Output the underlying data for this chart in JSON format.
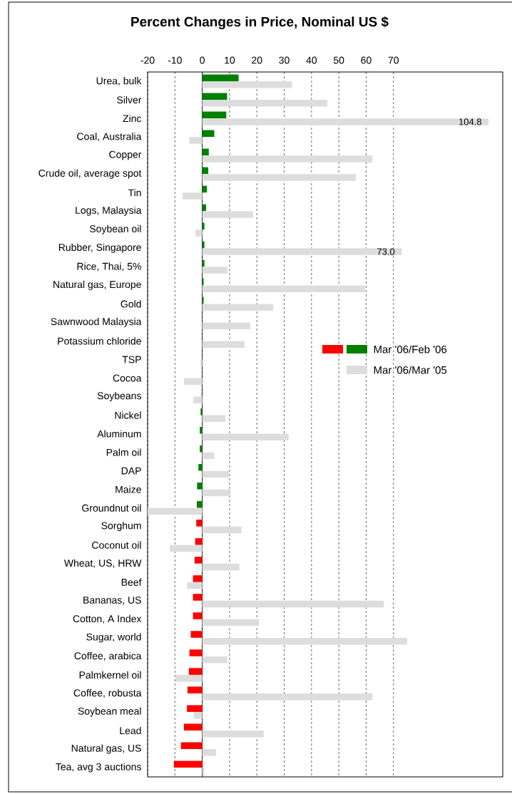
{
  "chart_data": {
    "type": "bar",
    "orientation": "horizontal",
    "title": "Percent Changes in Price, Nominal US $",
    "categories": [
      "Urea, bulk",
      "Silver",
      "Zinc",
      "Coal, Australia",
      "Copper",
      "Crude oil, average spot",
      "Tin",
      "Logs, Malaysia",
      "Soybean oil",
      "Rubber, Singapore",
      "Rice, Thai, 5%",
      "Natural gas, Europe",
      "Gold",
      "Sawnwood Malaysia",
      "Potassium chloride",
      "TSP",
      "Cocoa",
      "Soybeans",
      "Nickel",
      "Aluminum",
      "Palm oil",
      "DAP",
      "Maize",
      "Groundnut oil",
      "Sorghum",
      "Coconut oil",
      "Wheat, US, HRW",
      "Beef",
      "Bananas, US",
      "Cotton, A Index",
      "Sugar, world",
      "Coffee, arabica",
      "Palmkernel oil",
      "Coffee, robusta",
      "Soybean meal",
      "Lead",
      "Natural gas, US",
      "Tea, avg 3 auctions"
    ],
    "series": [
      {
        "name": "Mar '06/Feb '06",
        "values": [
          13.3,
          9.1,
          8.8,
          4.4,
          2.4,
          2.2,
          1.7,
          1.4,
          0.8,
          0.8,
          0.8,
          0.5,
          0.5,
          0,
          0,
          0,
          0,
          -0.2,
          -0.6,
          -0.9,
          -0.9,
          -1.4,
          -1.9,
          -2.0,
          -2.2,
          -2.6,
          -2.8,
          -3.4,
          -3.4,
          -3.4,
          -4.2,
          -4.7,
          -4.9,
          -5.4,
          -5.6,
          -6.7,
          -7.8,
          -10.4
        ],
        "colors": [
          "#008000",
          "#008000",
          "#008000",
          "#008000",
          "#008000",
          "#008000",
          "#008000",
          "#008000",
          "#008000",
          "#008000",
          "#008000",
          "#008000",
          "#008000",
          "#008000",
          "#008000",
          "#008000",
          "#008000",
          "#008000",
          "#008000",
          "#008000",
          "#008000",
          "#008000",
          "#008000",
          "#008000",
          "#ff0000",
          "#ff0000",
          "#ff0000",
          "#ff0000",
          "#ff0000",
          "#ff0000",
          "#ff0000",
          "#ff0000",
          "#ff0000",
          "#ff0000",
          "#ff0000",
          "#ff0000",
          "#ff0000",
          "#ff0000"
        ]
      },
      {
        "name": "Mar '06/Mar '05",
        "color": "#dddddd",
        "values": [
          32.9,
          45.8,
          104.8,
          -4.7,
          62.3,
          56.2,
          -7.2,
          18.6,
          -2.5,
          73.0,
          9.2,
          59.6,
          26.0,
          17.5,
          15.5,
          -0.6,
          -6.7,
          -3.3,
          8.5,
          31.6,
          4.4,
          9.7,
          10.4,
          -20.0,
          14.4,
          -11.9,
          13.6,
          -5.5,
          66.5,
          20.8,
          75.0,
          9.2,
          -9.7,
          62.3,
          -3.1,
          22.5,
          5.1,
          0.8
        ],
        "value_labels": [
          null,
          null,
          "104.8",
          null,
          null,
          null,
          null,
          null,
          null,
          "73.0",
          null,
          null,
          null,
          null,
          null,
          null,
          null,
          null,
          null,
          null,
          null,
          null,
          null,
          null,
          null,
          null,
          null,
          null,
          null,
          null,
          null,
          null,
          null,
          null,
          null,
          null,
          null,
          null
        ]
      }
    ],
    "xlim": [
      -20,
      110
    ],
    "xticks": [
      -20,
      -10,
      0,
      10,
      20,
      30,
      40,
      50,
      60,
      70
    ],
    "grid": "x",
    "legend": "right"
  }
}
